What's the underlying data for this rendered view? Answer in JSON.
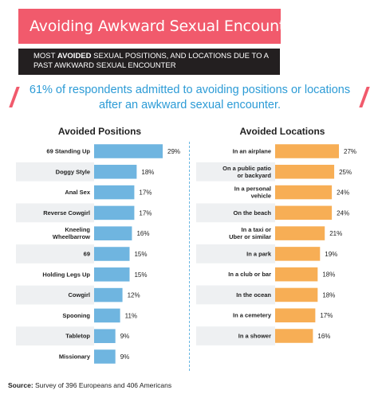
{
  "header": {
    "title": "Avoiding Awkward Sexual Encounters",
    "subtitle_pre": "MOST ",
    "subtitle_bold": "AVOIDED",
    "subtitle_post": " SEXUAL POSITIONS, AND LOCATIONS DUE TO A PAST AWKWARD SEXUAL ENCOUNTER",
    "headline": "61% of respondents admitted to avoiding positions or locations after an awkward sexual encounter."
  },
  "source": {
    "label": "Source:",
    "text": " Survey of 396 Europeans and 406 Americans"
  },
  "colors": {
    "title_banner": "#f15a6c",
    "positions_bar": "#6fb5e0",
    "locations_bar": "#f7ae55",
    "headline_text": "#2c9bd6"
  },
  "chart_data": [
    {
      "type": "bar",
      "orientation": "horizontal",
      "title": "Avoided Positions",
      "unit": "%",
      "categories": [
        "69 Standing Up",
        "Doggy Style",
        "Anal Sex",
        "Reverse Cowgirl",
        "Kneeling\nWheelbarrow",
        "69",
        "Holding Legs Up",
        "Cowgirl",
        "Spooning",
        "Tabletop",
        "Missionary"
      ],
      "values": [
        29,
        18,
        17,
        17,
        16,
        15,
        15,
        12,
        11,
        9,
        9
      ],
      "xlim": [
        0,
        29
      ]
    },
    {
      "type": "bar",
      "orientation": "horizontal",
      "title": "Avoided Locations",
      "unit": "%",
      "categories": [
        "In an airplane",
        "On a public patio\nor backyard",
        "In a personal\nvehicle",
        "On the beach",
        "In a taxi or\nUber or similar",
        "In a park",
        "In a club or bar",
        "In the ocean",
        "In a cemetery",
        "In a shower"
      ],
      "values": [
        27,
        25,
        24,
        24,
        21,
        19,
        18,
        18,
        17,
        16
      ],
      "xlim": [
        0,
        27
      ]
    }
  ]
}
